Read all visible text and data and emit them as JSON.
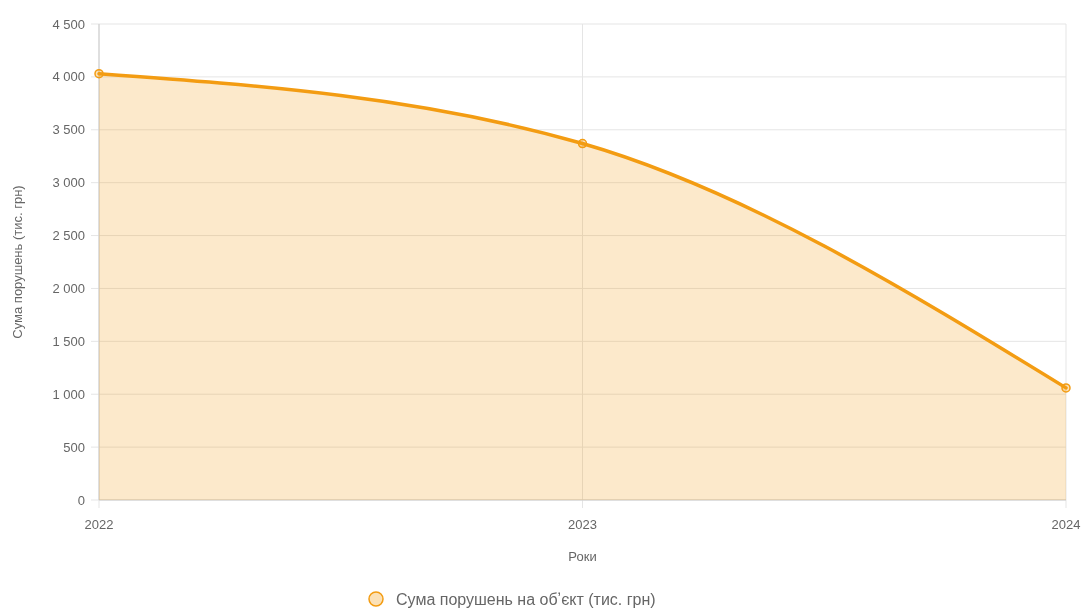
{
  "chart_data": {
    "type": "area",
    "xlabel": "Роки",
    "ylabel": "Сума порушень (тис. грн)",
    "categories": [
      "2022",
      "2023",
      "2024"
    ],
    "series": [
      {
        "name": "Сума порушень на обʼєкт (тис. грн)",
        "color": "#f39c12",
        "values": [
          4030,
          3370,
          1060
        ]
      }
    ],
    "ylim": [
      0,
      4500
    ],
    "yticks": [
      0,
      500,
      {
        "value": 1000,
        "label": "1 000"
      },
      {
        "value": 1500,
        "label": "1 500"
      },
      {
        "value": 2000,
        "label": "2 000"
      },
      {
        "value": 2500,
        "label": "2 500"
      },
      {
        "value": 3000,
        "label": "3 000"
      },
      {
        "value": 3500,
        "label": "3 500"
      },
      {
        "value": 4000,
        "label": "4 000"
      },
      {
        "value": 4500,
        "label": "4 500"
      }
    ],
    "grid": true,
    "legend": "bottom",
    "marker": "circle"
  }
}
